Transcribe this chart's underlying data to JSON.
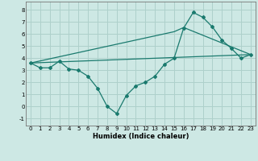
{
  "title": "",
  "xlabel": "Humidex (Indice chaleur)",
  "bg_color": "#cde8e4",
  "grid_color": "#aed0cb",
  "line_color": "#1a7a6e",
  "xlim": [
    -0.5,
    23.5
  ],
  "ylim": [
    -1.6,
    8.7
  ],
  "xticks": [
    0,
    1,
    2,
    3,
    4,
    5,
    6,
    7,
    8,
    9,
    10,
    11,
    12,
    13,
    14,
    15,
    16,
    17,
    18,
    19,
    20,
    21,
    22,
    23
  ],
  "yticks": [
    -1,
    0,
    1,
    2,
    3,
    4,
    5,
    6,
    7,
    8
  ],
  "line1_x": [
    0,
    1,
    2,
    3,
    4,
    5,
    6,
    7,
    8,
    9,
    10,
    11,
    12,
    13,
    14,
    15,
    16,
    17,
    18,
    19,
    20,
    21,
    22,
    23
  ],
  "line1_y": [
    3.6,
    3.2,
    3.2,
    3.75,
    3.1,
    3.0,
    2.5,
    1.5,
    0.0,
    -0.6,
    0.9,
    1.7,
    2.0,
    2.5,
    3.5,
    4.0,
    6.5,
    7.8,
    7.4,
    6.6,
    5.5,
    4.8,
    4.0,
    4.3
  ],
  "line2_x": [
    0,
    23
  ],
  "line2_y": [
    3.6,
    4.3
  ],
  "line3_x": [
    0,
    15,
    16,
    23
  ],
  "line3_y": [
    3.6,
    6.2,
    6.55,
    4.3
  ]
}
